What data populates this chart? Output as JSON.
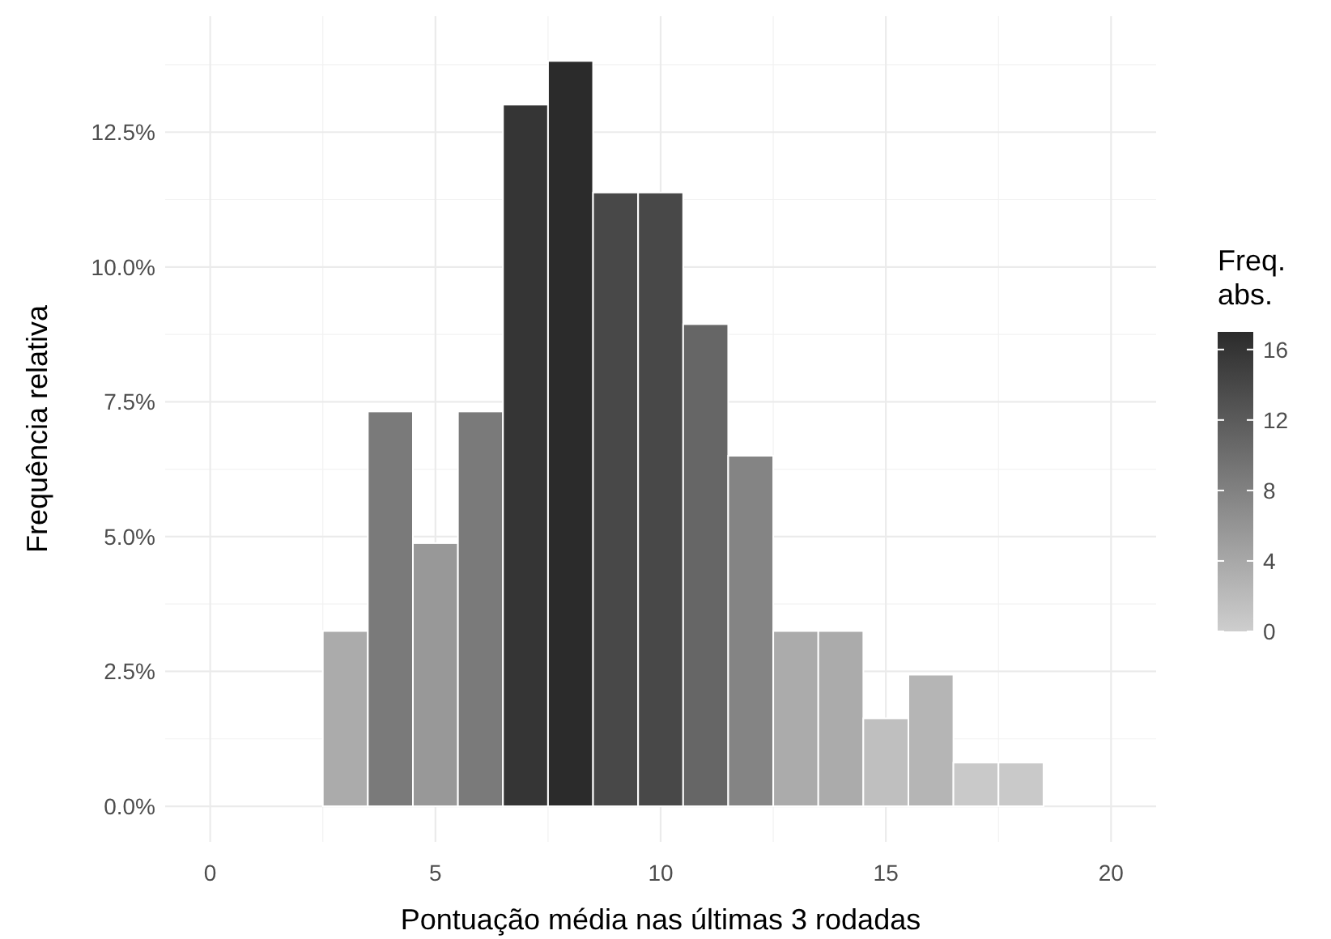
{
  "chart_data": {
    "type": "histogram",
    "xlabel": "Pontuação média nas últimas 3 rodadas",
    "ylabel": "Frequência relativa",
    "clabel": "Freq.\nabs.",
    "bins": [
      2.5,
      3.5,
      4.5,
      5.5,
      6.5,
      7.5,
      8.5,
      9.5,
      10.5,
      11.5,
      12.5,
      13.5,
      14.5,
      15.5,
      16.5,
      17.5,
      18.5
    ],
    "values": [
      3.25,
      7.32,
      4.88,
      7.32,
      13.01,
      13.82,
      11.38,
      11.38,
      8.94,
      6.5,
      3.25,
      3.25,
      1.63,
      2.44,
      0.81,
      0.81
    ],
    "colors": [
      "#ababab",
      "#7a7a7a",
      "#989898",
      "#7a7a7a",
      "#353535",
      "#2b2b2b",
      "#484848",
      "#484848",
      "#666666",
      "#848484",
      "#ababab",
      "#ababab",
      "#bfbfbf",
      "#b5b5b5",
      "#c9c9c9",
      "#c9c9c9"
    ],
    "xlim": [
      -1,
      21
    ],
    "xticks": [
      0,
      5,
      10,
      15,
      20
    ],
    "ylim": [
      -0.66,
      14.65
    ],
    "yticks": [
      {
        "value": 0,
        "label": "0.0%"
      },
      {
        "value": 2.5,
        "label": "2.5%"
      },
      {
        "value": 5,
        "label": "5.0%"
      },
      {
        "value": 7.5,
        "label": "7.5%"
      },
      {
        "value": 10,
        "label": "10.0%"
      },
      {
        "value": 12.5,
        "label": "12.5%"
      }
    ],
    "clim": [
      0,
      17
    ],
    "cticks": [
      0,
      4,
      8,
      12,
      16
    ],
    "grid": true
  }
}
